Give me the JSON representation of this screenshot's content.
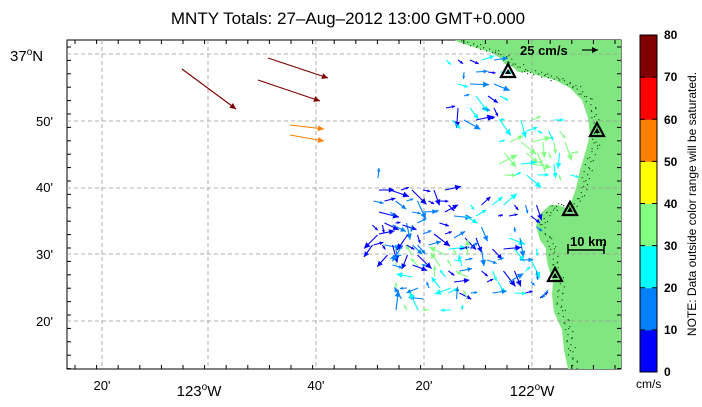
{
  "title": "MNTY Totals: 27–Aug–2012 13:00 GMT+0.000",
  "x_ticks": [
    {
      "label": "20'",
      "deg": false
    },
    {
      "label": "123",
      "deg": true,
      "suffix": "W"
    },
    {
      "label": "40'",
      "deg": false
    },
    {
      "label": "20'",
      "deg": false
    },
    {
      "label": "122",
      "deg": true,
      "suffix": "W"
    }
  ],
  "y_ticks": [
    {
      "label": "37",
      "deg": true,
      "suffix": "N"
    },
    {
      "label": "50'",
      "deg": false
    },
    {
      "label": "40'",
      "deg": false
    },
    {
      "label": "30'",
      "deg": false
    },
    {
      "label": "20'",
      "deg": false
    }
  ],
  "reference_vector": {
    "label": "25 cm/s"
  },
  "scale_bar": {
    "label": "10 km"
  },
  "colorbar": {
    "ticks": [
      "80",
      "70",
      "60",
      "50",
      "40",
      "30",
      "20",
      "10",
      "0"
    ],
    "unit": "cm/s",
    "note": "NOTE: Data outside color range will be saturated.",
    "colors": [
      "#0000ff",
      "#0080ff",
      "#00ffff",
      "#80ff80",
      "#ffff00",
      "#ff8000",
      "#ff0000",
      "#800000"
    ]
  },
  "colors": {
    "land": "#80e680",
    "coast_dot": "#1a5a1a",
    "station": "#000000",
    "grid": "#999999"
  },
  "stations_count": 4
}
